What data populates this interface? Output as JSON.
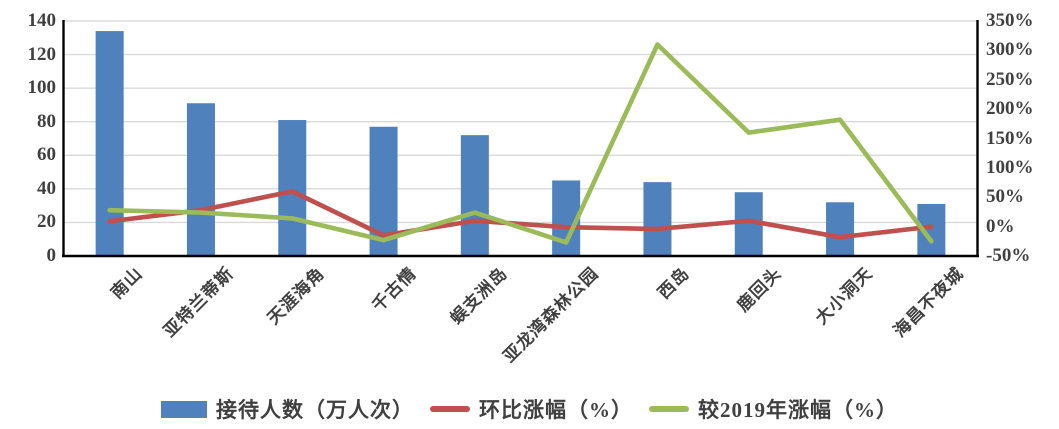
{
  "chart_data": {
    "type": "combo-bar-line",
    "title": "",
    "categories": [
      "南山",
      "亚特兰蒂斯",
      "天涯海角",
      "千古情",
      "蜈支洲岛",
      "亚龙湾森林公园",
      "西岛",
      "鹿回头",
      "大小洞天",
      "海昌不夜城"
    ],
    "series": [
      {
        "name": "接待人数（万人次）",
        "type": "bar",
        "axis": "left",
        "color": "#4F81BD",
        "values": [
          134,
          91,
          81,
          77,
          72,
          45,
          44,
          38,
          32,
          31
        ]
      },
      {
        "name": "环比涨幅（%）",
        "type": "line",
        "axis": "right",
        "color": "#C0504D",
        "values": [
          9,
          28,
          60,
          -15,
          10,
          -1,
          -4,
          10,
          -18,
          0
        ]
      },
      {
        "name": "较2019年涨幅（%）",
        "type": "line",
        "axis": "right",
        "color": "#9BBB59",
        "values": [
          28,
          24,
          14,
          -23,
          24,
          -27,
          310,
          160,
          182,
          -25
        ]
      }
    ],
    "left_axis": {
      "min": 0,
      "max": 140,
      "step": 20,
      "ticks": [
        "140",
        "120",
        "100",
        "80",
        "60",
        "40",
        "20",
        "0"
      ]
    },
    "right_axis": {
      "min": -50,
      "max": 350,
      "step": 50,
      "ticks": [
        "350%",
        "300%",
        "250%",
        "200%",
        "150%",
        "100%",
        "50%",
        "0%",
        "-50%"
      ]
    },
    "grid": true,
    "legend_position": "bottom"
  },
  "legend": {
    "items": [
      {
        "label": "接待人数（万人次）",
        "swatch": "bar",
        "color": "#4F81BD"
      },
      {
        "label": "环比涨幅（%）",
        "swatch": "line",
        "color": "#C0504D"
      },
      {
        "label": "较2019年涨幅（%）",
        "swatch": "line",
        "color": "#9BBB59"
      }
    ]
  },
  "colors": {
    "background": "#FFFFFF",
    "gridline": "#D9D9D9",
    "axis_line": "#000000",
    "tick_label": "#404040",
    "bar": "#4F81BD",
    "line_mom": "#C0504D",
    "line_vs2019": "#9BBB59"
  }
}
